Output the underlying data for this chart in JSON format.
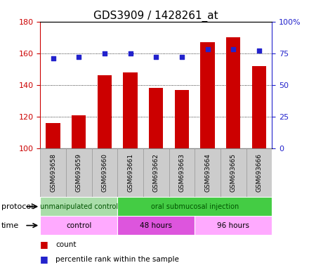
{
  "title": "GDS3909 / 1428261_at",
  "samples": [
    "GSM693658",
    "GSM693659",
    "GSM693660",
    "GSM693661",
    "GSM693662",
    "GSM693663",
    "GSM693664",
    "GSM693665",
    "GSM693666"
  ],
  "counts": [
    116,
    121,
    146,
    148,
    138,
    137,
    167,
    170,
    152
  ],
  "percentile_ranks": [
    71,
    72,
    75,
    75,
    72,
    72,
    78,
    78,
    77
  ],
  "ylim_left": [
    100,
    180
  ],
  "ylim_right": [
    0,
    100
  ],
  "yticks_left": [
    100,
    120,
    140,
    160,
    180
  ],
  "yticks_right": [
    0,
    25,
    50,
    75,
    100
  ],
  "bar_color": "#cc0000",
  "dot_color": "#2222cc",
  "protocol_groups": [
    {
      "label": "unmanipulated control",
      "start": 0,
      "end": 3,
      "color": "#aaddaa"
    },
    {
      "label": "oral submucosal injection",
      "start": 3,
      "end": 9,
      "color": "#44cc44"
    }
  ],
  "time_colors": [
    "#ffaaff",
    "#dd55dd",
    "#ffaaff"
  ],
  "time_groups": [
    {
      "label": "control",
      "start": 0,
      "end": 3
    },
    {
      "label": "48 hours",
      "start": 3,
      "end": 6
    },
    {
      "label": "96 hours",
      "start": 6,
      "end": 9
    }
  ],
  "legend_count_label": "count",
  "legend_pct_label": "percentile rank within the sample",
  "protocol_label": "protocol",
  "time_label": "time",
  "left_tick_color": "#cc0000",
  "right_tick_color": "#2222cc",
  "title_fontsize": 11,
  "tick_fontsize": 8,
  "n_samples": 9
}
